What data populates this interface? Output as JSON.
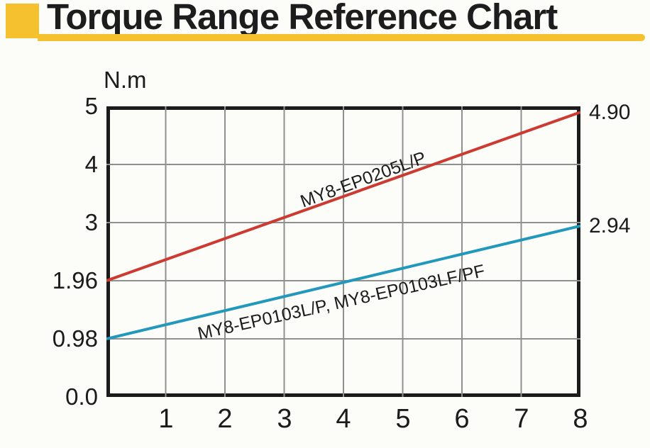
{
  "header": {
    "title": "Torque Range Reference Chart",
    "accent_color": "#f6c12f"
  },
  "chart_data": {
    "type": "line",
    "title": "Torque Range Reference Chart",
    "ylabel": "N.m",
    "xlabel": "",
    "xlim": [
      0,
      8
    ],
    "grid": true,
    "x_ticks": [
      "1",
      "2",
      "3",
      "4",
      "5",
      "6",
      "7",
      "8"
    ],
    "y_ticks": [
      "5",
      "4",
      "3",
      "1.96",
      "0.98",
      "0.0"
    ],
    "series": [
      {
        "name": "MY8-EP0205L/P",
        "color": "#cd3a31",
        "x": [
          0,
          8
        ],
        "values": [
          1.96,
          4.9
        ],
        "end_label": "4.90"
      },
      {
        "name": "MY8-EP0103L/P, MY8-EP0103LF/PF",
        "color": "#2298bc",
        "x": [
          0,
          8
        ],
        "values": [
          0.98,
          2.94
        ],
        "end_label": "2.94"
      }
    ]
  }
}
